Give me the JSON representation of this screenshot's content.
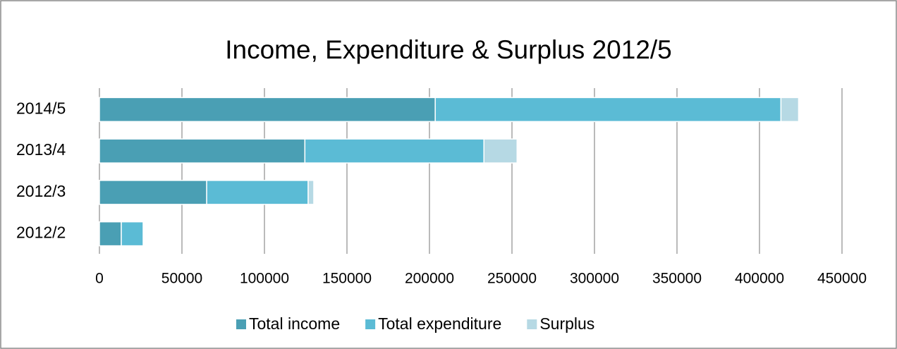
{
  "chart_data": {
    "type": "bar",
    "orientation": "horizontal",
    "stacked": true,
    "title": "Income, Expenditure & Surplus 2012/5",
    "categories": [
      "2014/5",
      "2013/4",
      "2012/3",
      "2012/2"
    ],
    "series": [
      {
        "name": "Total income",
        "color": "#4a9fb4",
        "values": [
          203500,
          124500,
          65000,
          13250
        ]
      },
      {
        "name": "Total expenditure",
        "color": "#5bbbd5",
        "values": [
          209500,
          108500,
          61500,
          13250
        ]
      },
      {
        "name": "Surplus",
        "color": "#b6d9e4",
        "values": [
          10700,
          20100,
          3400,
          0
        ]
      }
    ],
    "xlim": [
      0,
      450000
    ],
    "xticks": [
      0,
      50000,
      100000,
      150000,
      200000,
      250000,
      300000,
      350000,
      400000,
      450000
    ],
    "grid": true,
    "legend": "bottom"
  }
}
